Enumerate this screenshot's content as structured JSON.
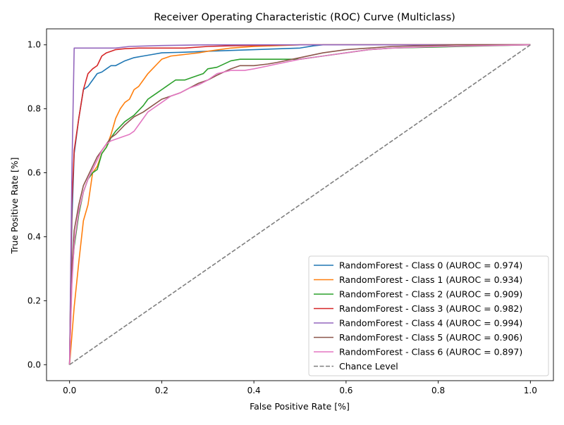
{
  "chart_data": {
    "type": "line",
    "title": "Receiver Operating Characteristic (ROC) Curve (Multiclass)",
    "xlabel": "False Positive Rate [%]",
    "ylabel": "True Positive Rate [%]",
    "xlim": [
      -0.05,
      1.05
    ],
    "ylim": [
      -0.05,
      1.05
    ],
    "xticks": [
      "0.0",
      "0.2",
      "0.4",
      "0.6",
      "0.8",
      "1.0"
    ],
    "yticks": [
      "0.0",
      "0.2",
      "0.4",
      "0.6",
      "0.8",
      "1.0"
    ],
    "grid": false,
    "legend_position": "lower right",
    "series": [
      {
        "name": "RandomForest - Class 0 (AUROC = 0.974)",
        "color": "#1f77b4",
        "style": "solid",
        "x": [
          0,
          0.005,
          0.01,
          0.02,
          0.03,
          0.04,
          0.05,
          0.06,
          0.07,
          0.08,
          0.09,
          0.1,
          0.12,
          0.14,
          0.16,
          0.18,
          0.2,
          0.25,
          0.3,
          0.4,
          0.5,
          0.53,
          0.55,
          1.0
        ],
        "y": [
          0,
          0.45,
          0.66,
          0.77,
          0.86,
          0.87,
          0.89,
          0.91,
          0.915,
          0.925,
          0.935,
          0.935,
          0.95,
          0.96,
          0.965,
          0.97,
          0.975,
          0.977,
          0.98,
          0.985,
          0.99,
          0.997,
          1.0,
          1.0
        ]
      },
      {
        "name": "RandomForest - Class 1 (AUROC = 0.934)",
        "color": "#ff7f0e",
        "style": "solid",
        "x": [
          0,
          0.01,
          0.02,
          0.03,
          0.04,
          0.05,
          0.06,
          0.07,
          0.08,
          0.09,
          0.1,
          0.11,
          0.12,
          0.13,
          0.14,
          0.15,
          0.16,
          0.17,
          0.18,
          0.19,
          0.2,
          0.21,
          0.22,
          0.25,
          0.28,
          0.3,
          0.35,
          0.4,
          0.5,
          1.0
        ],
        "y": [
          0,
          0.18,
          0.32,
          0.45,
          0.5,
          0.6,
          0.62,
          0.66,
          0.68,
          0.72,
          0.77,
          0.8,
          0.82,
          0.83,
          0.86,
          0.87,
          0.89,
          0.91,
          0.925,
          0.94,
          0.955,
          0.96,
          0.965,
          0.97,
          0.975,
          0.98,
          0.99,
          0.995,
          1.0,
          1.0
        ]
      },
      {
        "name": "RandomForest - Class 2 (AUROC = 0.909)",
        "color": "#2ca02c",
        "style": "solid",
        "x": [
          0,
          0.005,
          0.01,
          0.02,
          0.03,
          0.04,
          0.05,
          0.06,
          0.07,
          0.08,
          0.09,
          0.1,
          0.12,
          0.14,
          0.16,
          0.17,
          0.18,
          0.19,
          0.2,
          0.21,
          0.22,
          0.23,
          0.25,
          0.27,
          0.28,
          0.29,
          0.3,
          0.32,
          0.35,
          0.37,
          0.4,
          0.5,
          0.55,
          0.6,
          0.65,
          0.7,
          1.0
        ],
        "y": [
          0,
          0.28,
          0.37,
          0.47,
          0.54,
          0.58,
          0.6,
          0.61,
          0.66,
          0.68,
          0.71,
          0.73,
          0.76,
          0.78,
          0.81,
          0.83,
          0.84,
          0.85,
          0.86,
          0.87,
          0.88,
          0.89,
          0.89,
          0.9,
          0.905,
          0.91,
          0.925,
          0.93,
          0.95,
          0.955,
          0.955,
          0.955,
          0.965,
          0.975,
          0.985,
          0.99,
          1.0
        ]
      },
      {
        "name": "RandomForest - Class 3 (AUROC = 0.982)",
        "color": "#d62728",
        "style": "solid",
        "x": [
          0,
          0.005,
          0.01,
          0.02,
          0.03,
          0.04,
          0.05,
          0.06,
          0.07,
          0.08,
          0.09,
          0.1,
          0.12,
          0.15,
          0.2,
          0.25,
          0.3,
          0.35,
          0.4,
          0.5,
          0.6,
          1.0
        ],
        "y": [
          0,
          0.5,
          0.67,
          0.77,
          0.86,
          0.91,
          0.925,
          0.935,
          0.965,
          0.975,
          0.98,
          0.985,
          0.988,
          0.99,
          0.99,
          0.99,
          0.995,
          0.997,
          0.998,
          1.0,
          1.0,
          1.0
        ]
      },
      {
        "name": "RandomForest - Class 4 (AUROC = 0.994)",
        "color": "#9467bd",
        "style": "solid",
        "x": [
          0,
          0.005,
          0.01,
          0.1,
          0.13,
          0.2,
          0.3,
          1.0
        ],
        "y": [
          0,
          0.6,
          0.99,
          0.99,
          0.995,
          0.998,
          1.0,
          1.0
        ]
      },
      {
        "name": "RandomForest - Class 5 (AUROC = 0.906)",
        "color": "#8c564b",
        "style": "solid",
        "x": [
          0,
          0.005,
          0.01,
          0.02,
          0.03,
          0.04,
          0.05,
          0.06,
          0.07,
          0.08,
          0.09,
          0.1,
          0.12,
          0.14,
          0.16,
          0.18,
          0.2,
          0.22,
          0.24,
          0.26,
          0.28,
          0.3,
          0.32,
          0.35,
          0.37,
          0.4,
          0.43,
          0.45,
          0.5,
          0.55,
          0.6,
          0.65,
          0.7,
          0.84,
          1.0
        ],
        "y": [
          0,
          0.3,
          0.42,
          0.5,
          0.56,
          0.59,
          0.62,
          0.65,
          0.67,
          0.69,
          0.71,
          0.72,
          0.75,
          0.775,
          0.79,
          0.81,
          0.83,
          0.84,
          0.85,
          0.865,
          0.88,
          0.89,
          0.905,
          0.925,
          0.935,
          0.935,
          0.94,
          0.945,
          0.96,
          0.975,
          0.985,
          0.99,
          0.995,
          1.0,
          1.0
        ]
      },
      {
        "name": "RandomForest - Class 6 (AUROC = 0.897)",
        "color": "#e377c2",
        "style": "solid",
        "x": [
          0,
          0.005,
          0.01,
          0.02,
          0.03,
          0.04,
          0.05,
          0.06,
          0.07,
          0.08,
          0.09,
          0.1,
          0.12,
          0.13,
          0.14,
          0.15,
          0.16,
          0.17,
          0.18,
          0.19,
          0.2,
          0.22,
          0.24,
          0.26,
          0.28,
          0.3,
          0.32,
          0.35,
          0.38,
          0.4,
          0.45,
          0.5,
          0.55,
          0.6,
          0.65,
          0.7,
          0.8,
          1.0
        ],
        "y": [
          0,
          0.25,
          0.38,
          0.48,
          0.54,
          0.58,
          0.61,
          0.64,
          0.67,
          0.69,
          0.7,
          0.705,
          0.715,
          0.72,
          0.73,
          0.75,
          0.77,
          0.79,
          0.8,
          0.81,
          0.82,
          0.84,
          0.85,
          0.865,
          0.875,
          0.89,
          0.91,
          0.92,
          0.92,
          0.925,
          0.94,
          0.955,
          0.965,
          0.975,
          0.985,
          0.99,
          0.995,
          1.0
        ]
      },
      {
        "name": "Chance Level",
        "color": "#7f7f7f",
        "style": "dashed",
        "x": [
          0,
          1
        ],
        "y": [
          0,
          1
        ]
      }
    ]
  }
}
